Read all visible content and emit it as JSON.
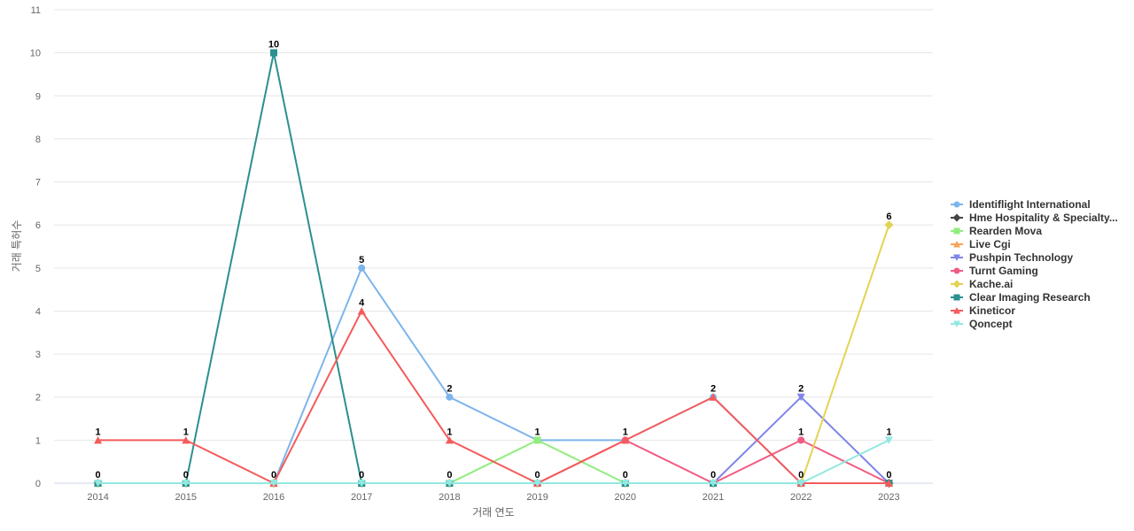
{
  "chart_data": {
    "type": "line",
    "xlabel": "거래 연도",
    "ylabel": "거래 특허수",
    "ylim": [
      0,
      11
    ],
    "y_ticks": [
      0,
      1,
      2,
      3,
      4,
      5,
      6,
      7,
      8,
      9,
      10,
      11
    ],
    "grid": true,
    "legend_position": "right",
    "categories": [
      "2014",
      "2015",
      "2016",
      "2017",
      "2018",
      "2019",
      "2020",
      "2021",
      "2022",
      "2023"
    ],
    "series": [
      {
        "name": "Identiflight International",
        "color": "#7cb5ec",
        "marker": "circle",
        "values": [
          0,
          0,
          0,
          5,
          2,
          1,
          1,
          2,
          0,
          0
        ]
      },
      {
        "name": "Hme Hospitality & Specialty...",
        "color": "#434348",
        "marker": "diamond",
        "values": [
          0,
          0,
          0,
          0,
          0,
          0,
          0,
          0,
          0,
          0
        ]
      },
      {
        "name": "Rearden Mova",
        "color": "#90ed7d",
        "marker": "square",
        "values": [
          0,
          0,
          0,
          0,
          0,
          1,
          0,
          0,
          0,
          0
        ]
      },
      {
        "name": "Live Cgi",
        "color": "#f7a35c",
        "marker": "triangle",
        "values": [
          0,
          0,
          0,
          0,
          0,
          0,
          0,
          0,
          0,
          0
        ]
      },
      {
        "name": "Pushpin Technology",
        "color": "#8085e9",
        "marker": "triangle-down",
        "values": [
          0,
          0,
          0,
          0,
          0,
          0,
          0,
          0,
          2,
          0
        ]
      },
      {
        "name": "Turnt Gaming",
        "color": "#f15c80",
        "marker": "circle",
        "values": [
          0,
          0,
          0,
          0,
          0,
          0,
          1,
          0,
          1,
          0
        ]
      },
      {
        "name": "Kache.ai",
        "color": "#e4d354",
        "marker": "diamond",
        "values": [
          0,
          0,
          0,
          0,
          0,
          0,
          0,
          0,
          0,
          6
        ]
      },
      {
        "name": "Clear Imaging Research",
        "color": "#2b908f",
        "marker": "square",
        "values": [
          0,
          0,
          10,
          0,
          0,
          0,
          0,
          0,
          0,
          0
        ]
      },
      {
        "name": "Kineticor",
        "color": "#f45b5b",
        "marker": "triangle",
        "values": [
          1,
          1,
          0,
          4,
          1,
          0,
          1,
          2,
          0,
          0
        ]
      },
      {
        "name": "Qoncept",
        "color": "#91e8e1",
        "marker": "triangle-down",
        "values": [
          0,
          0,
          0,
          0,
          0,
          0,
          0,
          0,
          0,
          1
        ]
      }
    ],
    "data_labels": [
      {
        "x": "2014",
        "value": 1,
        "above": true
      },
      {
        "x": "2014",
        "value": 0,
        "above": false
      },
      {
        "x": "2015",
        "value": 1,
        "above": true
      },
      {
        "x": "2015",
        "value": 0,
        "above": false
      },
      {
        "x": "2016",
        "value": 10,
        "above": true
      },
      {
        "x": "2016",
        "value": 0,
        "above": false
      },
      {
        "x": "2017",
        "value": 5,
        "above": true
      },
      {
        "x": "2017",
        "value": 4,
        "above": true
      },
      {
        "x": "2017",
        "value": 0,
        "above": false
      },
      {
        "x": "2018",
        "value": 2,
        "above": true
      },
      {
        "x": "2018",
        "value": 1,
        "above": true
      },
      {
        "x": "2018",
        "value": 0,
        "above": false
      },
      {
        "x": "2019",
        "value": 1,
        "above": true
      },
      {
        "x": "2019",
        "value": 0,
        "above": false
      },
      {
        "x": "2020",
        "value": 1,
        "above": true
      },
      {
        "x": "2020",
        "value": 0,
        "above": false
      },
      {
        "x": "2021",
        "value": 2,
        "above": true
      },
      {
        "x": "2021",
        "value": 0,
        "above": false
      },
      {
        "x": "2022",
        "value": 2,
        "above": true
      },
      {
        "x": "2022",
        "value": 1,
        "above": true
      },
      {
        "x": "2022",
        "value": 0,
        "above": false
      },
      {
        "x": "2023",
        "value": 6,
        "above": true
      },
      {
        "x": "2023",
        "value": 1,
        "above": true
      },
      {
        "x": "2023",
        "value": 0,
        "above": false
      }
    ]
  }
}
